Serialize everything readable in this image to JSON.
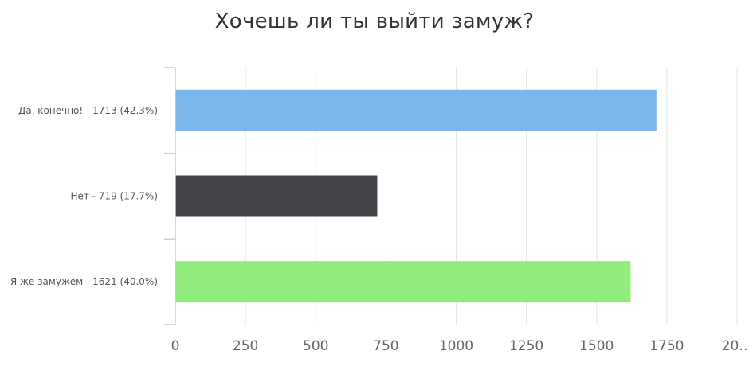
{
  "chart_data": {
    "type": "bar",
    "orientation": "horizontal",
    "title": "Хочешь ли ты выйти замуж?",
    "categories": [
      "Да, конечно! - 1713 (42.3%)",
      "Нет - 719 (17.7%)",
      "Я же замужем - 1621 (40.0%)"
    ],
    "values": [
      1713,
      719,
      1621
    ],
    "colors": [
      "#7cb5ec",
      "#434348",
      "#90ed7d"
    ],
    "xlim": [
      0,
      2000
    ],
    "x_ticks": [
      "0",
      "250",
      "500",
      "750",
      "1000",
      "1250",
      "1500",
      "1750",
      "20…"
    ],
    "grid": true,
    "xlabel": "",
    "ylabel": ""
  }
}
